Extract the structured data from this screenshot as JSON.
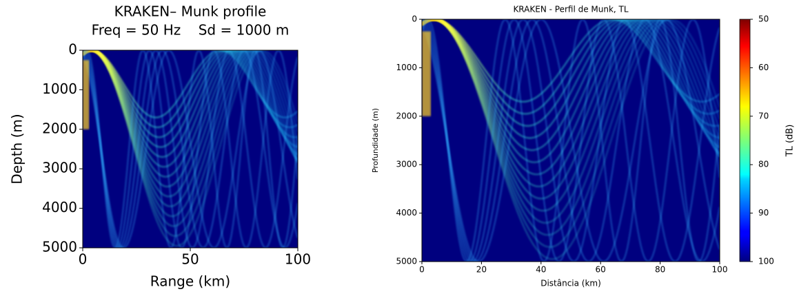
{
  "chart_data": [
    {
      "type": "heatmap",
      "title": "KRAKEN– Munk profile",
      "subtitle": "Freq = 50 Hz    Sd = 1000 m",
      "xlabel": "Range (km)",
      "ylabel": "Depth (m)",
      "xlim": [
        0,
        100
      ],
      "xticks": [
        0,
        50,
        100
      ],
      "ylim": [
        5000,
        0
      ],
      "yticks": [
        0,
        1000,
        2000,
        3000,
        4000,
        5000
      ],
      "colormap": "jet"
    },
    {
      "type": "heatmap",
      "title": "KRAKEN - Perfil de Munk, TL",
      "xlabel": "Distância (km)",
      "ylabel": "Profundidade (m)",
      "xlim": [
        0,
        100
      ],
      "xticks": [
        0,
        20,
        40,
        60,
        80,
        100
      ],
      "ylim": [
        5000,
        0
      ],
      "yticks": [
        0,
        1000,
        2000,
        3000,
        4000,
        5000
      ],
      "colormap": "jet",
      "colorbar": {
        "label": "TL (dB)",
        "lim": [
          100,
          50
        ],
        "ticks": [
          50,
          60,
          70,
          80,
          90,
          100
        ]
      }
    }
  ]
}
